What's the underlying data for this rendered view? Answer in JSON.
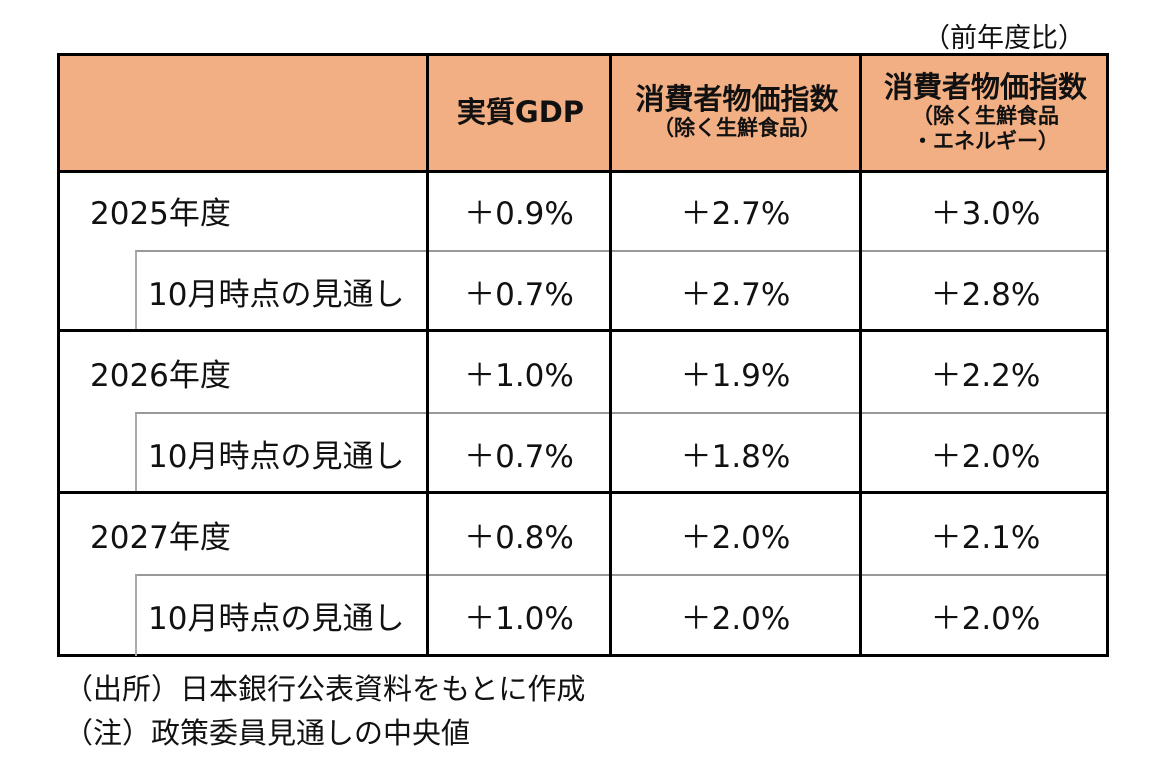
{
  "unit_note": "（前年度比）",
  "header": {
    "col1": "実質GDP",
    "col2": {
      "title": "消費者物価指数",
      "sub": "（除く生鮮食品）"
    },
    "col3": {
      "title": "消費者物価指数",
      "sub1": "（除く生鮮食品",
      "sub2": "・エネルギー）"
    }
  },
  "rows": [
    {
      "label": "2025年度",
      "values": [
        "＋0.9%",
        "＋2.7%",
        "＋3.0%"
      ],
      "sub_label": "10月時点の見通し",
      "sub_values": [
        "＋0.7%",
        "＋2.7%",
        "＋2.8%"
      ]
    },
    {
      "label": "2026年度",
      "values": [
        "＋1.0%",
        "＋1.9%",
        "＋2.2%"
      ],
      "sub_label": "10月時点の見通し",
      "sub_values": [
        "＋0.7%",
        "＋1.8%",
        "＋2.0%"
      ]
    },
    {
      "label": "2027年度",
      "values": [
        "＋0.8%",
        "＋2.0%",
        "＋2.1%"
      ],
      "sub_label": "10月時点の見通し",
      "sub_values": [
        "＋1.0%",
        "＋2.0%",
        "＋2.0%"
      ]
    }
  ],
  "notes": [
    "（出所）日本銀行公表資料をもとに作成",
    "（注）政策委員見通しの中央値"
  ],
  "colors": {
    "header_bg": "#F2AF84"
  }
}
